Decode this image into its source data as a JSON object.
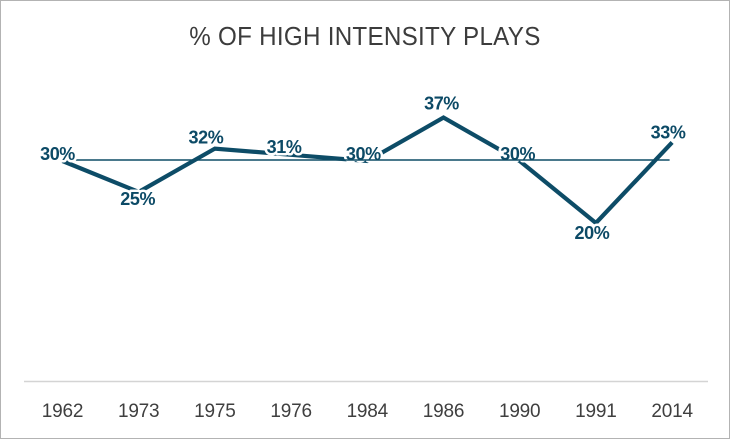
{
  "title": "% OF HIGH INTENSITY PLAYS",
  "colors": {
    "series_line": "#0d4c67",
    "reference_line": "#0f4d66",
    "data_label": "#0c4a66",
    "axis_line": "#d4d4d4",
    "axis_text": "#3f3f3f",
    "title_text": "#3c3c3c",
    "background": "#ffffff",
    "frame_border": "#b3b3b3"
  },
  "chart_data": {
    "type": "line",
    "title": "% OF HIGH INTENSITY PLAYS",
    "categories": [
      "1962",
      "1973",
      "1975",
      "1976",
      "1984",
      "1986",
      "1990",
      "1991",
      "2014"
    ],
    "series": [
      {
        "name": "high-intensity-plays-pct",
        "values": [
          30,
          25,
          32,
          31,
          30,
          37,
          30,
          20,
          33
        ],
        "labels": [
          "30%",
          "25%",
          "32%",
          "31%",
          "30%",
          "37%",
          "30%",
          "20%",
          "33%"
        ]
      },
      {
        "name": "reference-30-percent",
        "values": [
          30,
          30,
          30,
          30,
          30,
          30,
          30,
          30,
          30
        ]
      }
    ],
    "xlabel": "",
    "ylabel": "",
    "ylim": [
      0,
      40
    ],
    "legend": "none",
    "gridlines": "off",
    "data_labels": "on"
  }
}
